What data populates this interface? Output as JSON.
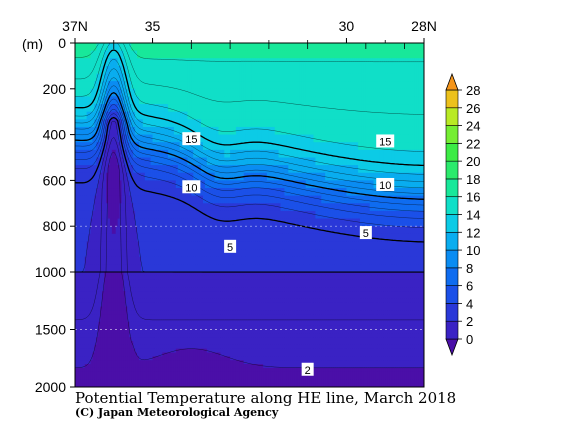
{
  "chart_data": {
    "type": "contour",
    "title": "Potential Temperature along HE line, March 2018",
    "credit": "(C) Japan Meteorological Agency",
    "x_ticks": [
      "37N",
      "35",
      "30",
      "28N"
    ],
    "x_ticks_lat": [
      37,
      35,
      30,
      28
    ],
    "xlim": [
      37,
      28
    ],
    "y_unit": "(m)",
    "y_ticks": [
      0,
      200,
      400,
      600,
      800,
      1000,
      1500,
      2000
    ],
    "ylim": [
      0,
      2000
    ],
    "station_lats": [
      36,
      34,
      33,
      32,
      31,
      29.5,
      28.5
    ],
    "contour_levels": [
      2,
      3,
      4,
      5,
      6,
      7,
      8,
      9,
      10,
      11,
      12,
      13,
      14,
      15,
      16,
      17,
      18
    ],
    "labeled_contours": [
      {
        "value": "15",
        "lat": 34.0,
        "depth": 420
      },
      {
        "value": "15",
        "lat": 29.0,
        "depth": 430
      },
      {
        "value": "10",
        "lat": 34.0,
        "depth": 630
      },
      {
        "value": "10",
        "lat": 29.0,
        "depth": 620
      },
      {
        "value": "5",
        "lat": 33.0,
        "depth": 890
      },
      {
        "value": "5",
        "lat": 29.5,
        "depth": 830
      },
      {
        "value": "2",
        "lat": 31.0,
        "depth": 1850
      }
    ],
    "colorbar": {
      "labels": [
        "28",
        "26",
        "24",
        "22",
        "20",
        "18",
        "16",
        "14",
        "12",
        "10",
        "8",
        "6",
        "4",
        "2",
        "0"
      ],
      "levels": [
        0,
        2,
        4,
        6,
        8,
        10,
        12,
        14,
        16,
        18,
        20,
        22,
        24,
        26,
        28
      ],
      "colors": [
        "#4a0fa8",
        "#3a22c4",
        "#2a38d8",
        "#1b50e8",
        "#0f6cf0",
        "#0a8cf2",
        "#09adef",
        "#0ccbe6",
        "#10dfc8",
        "#18e89a",
        "#2bea6c",
        "#3cec45",
        "#75ee33",
        "#b9ea25",
        "#ecc11c",
        "#f5951a"
      ]
    }
  }
}
